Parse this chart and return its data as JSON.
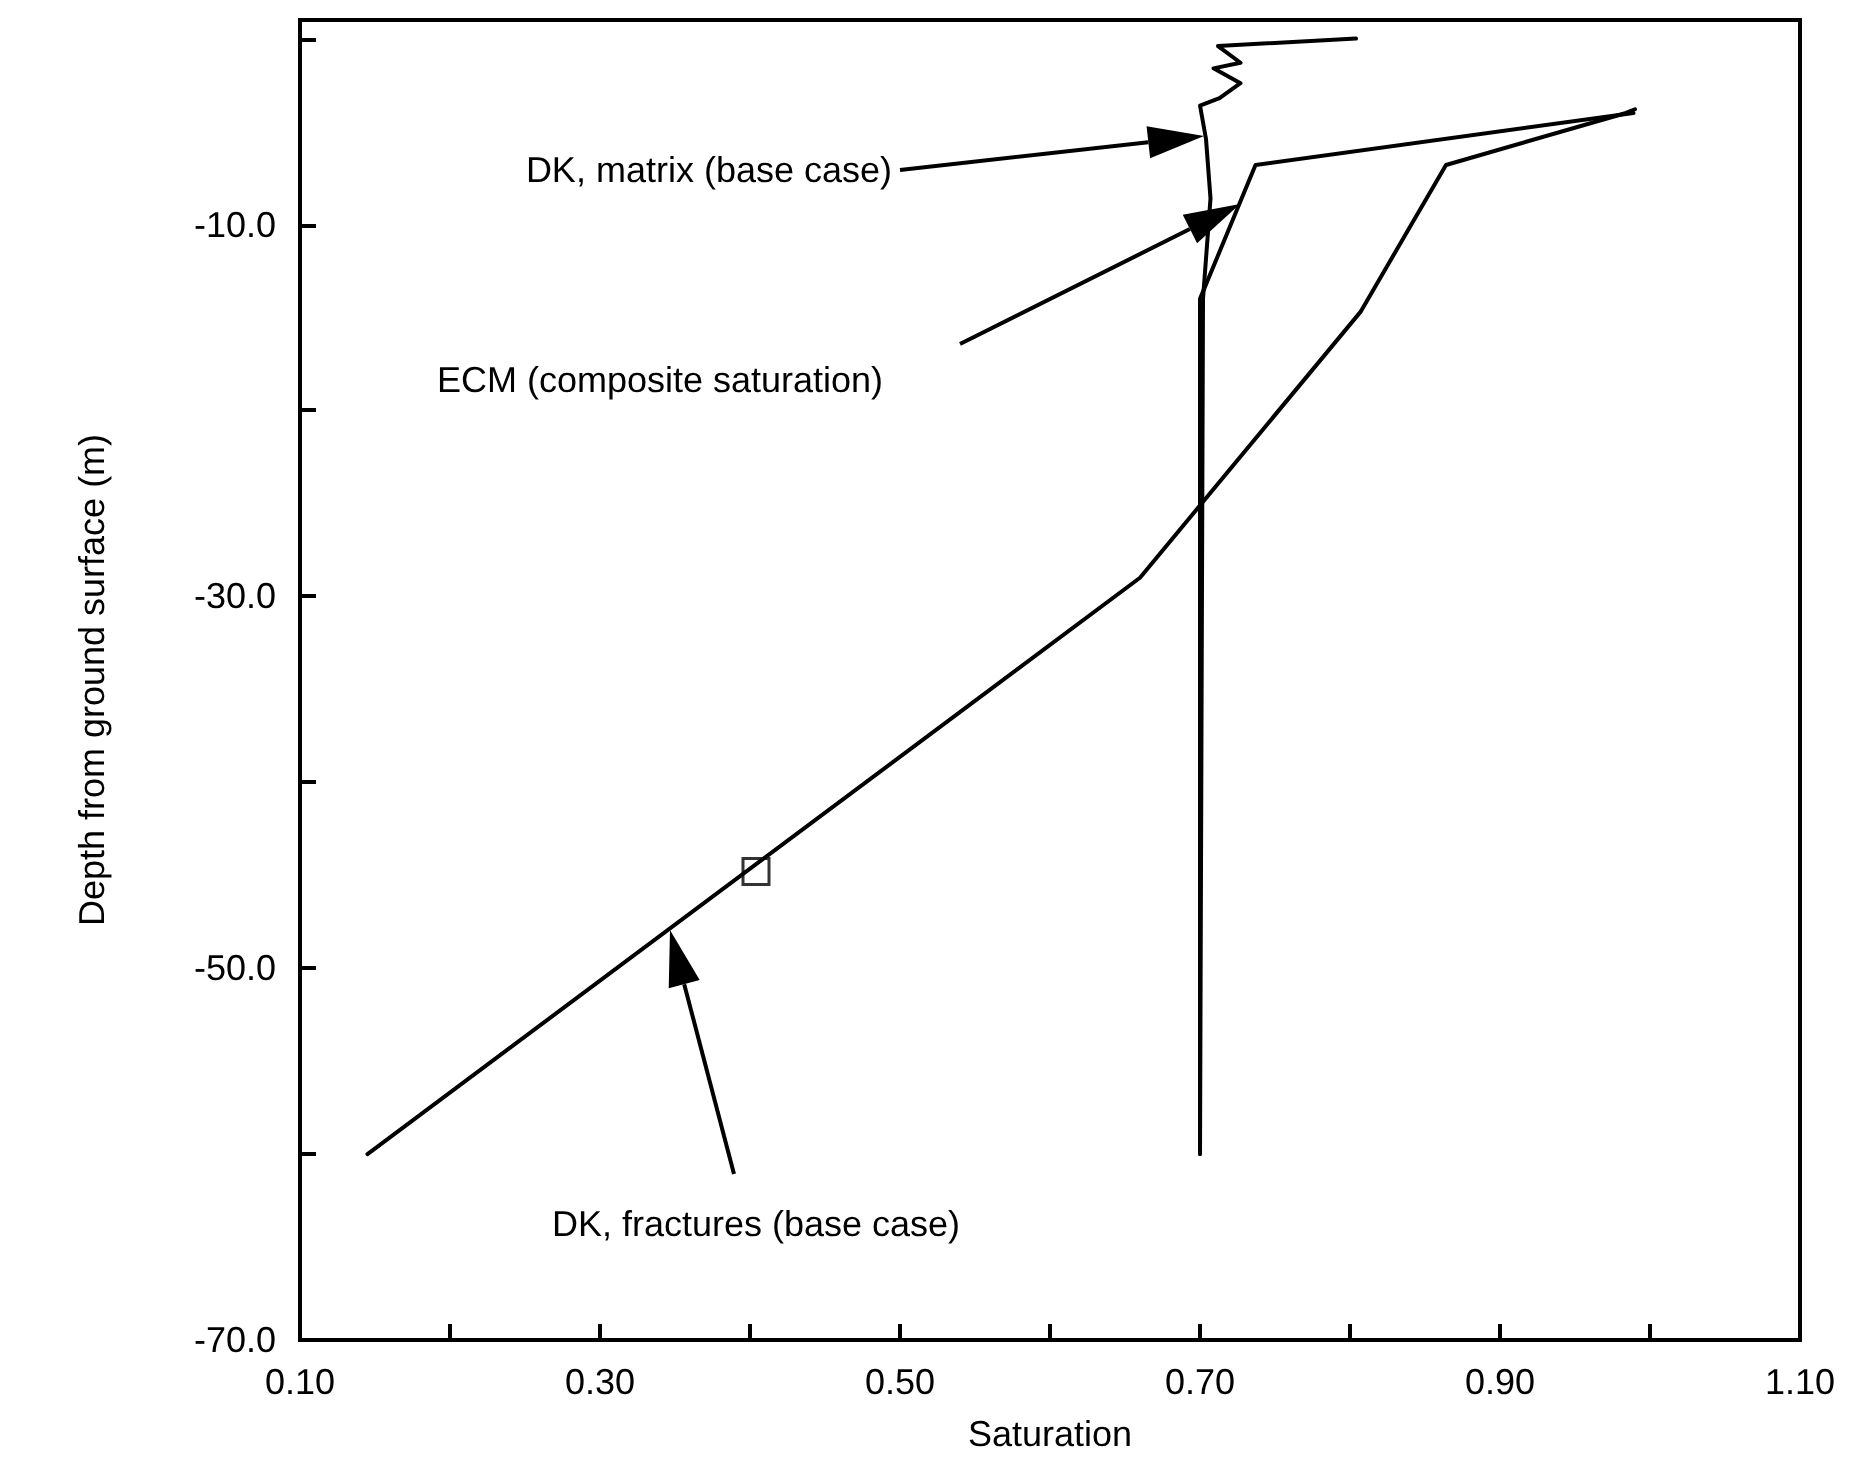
{
  "chart_data": {
    "type": "line",
    "xlabel": "Saturation",
    "ylabel": "Depth from ground surface (m)",
    "xlim": [
      0.1,
      1.1
    ],
    "ylim": [
      -70,
      1
    ],
    "xticks": [
      {
        "value": 0.1,
        "label": "0.10"
      },
      {
        "value": 0.2,
        "label": null
      },
      {
        "value": 0.3,
        "label": "0.30"
      },
      {
        "value": 0.4,
        "label": null
      },
      {
        "value": 0.5,
        "label": "0.50"
      },
      {
        "value": 0.6,
        "label": null
      },
      {
        "value": 0.7,
        "label": "0.70"
      },
      {
        "value": 0.8,
        "label": null
      },
      {
        "value": 0.9,
        "label": "0.90"
      },
      {
        "value": 1.0,
        "label": null
      },
      {
        "value": 1.1,
        "label": "1.10"
      }
    ],
    "yticks": [
      {
        "value": -70,
        "label": "-70.0"
      },
      {
        "value": -60,
        "label": null
      },
      {
        "value": -50,
        "label": "-50.0"
      },
      {
        "value": -40,
        "label": null
      },
      {
        "value": -30,
        "label": "-30.0"
      },
      {
        "value": -20,
        "label": null
      },
      {
        "value": -10,
        "label": "-10.0"
      },
      {
        "value": 0,
        "label": null
      }
    ],
    "grid": false,
    "marker": "none",
    "line_style": "solid",
    "series": [
      {
        "color": "#000000",
        "x": [
          0.145,
          0.66,
          0.807,
          0.864,
          0.984,
          0.99
        ],
        "values": [
          -60,
          -29,
          -14.7,
          -6.8,
          -4.0,
          -3.8
        ]
      },
      {
        "color": "#000000",
        "x": [
          0.7,
          0.7,
          0.737,
          0.989
        ],
        "values": [
          -60,
          -14,
          -6.8,
          -4.0
        ]
      },
      {
        "color": "#000000",
        "x": [
          0.804,
          0.712,
          0.727,
          0.709,
          0.727,
          0.713,
          0.7,
          0.704,
          0.707,
          0.702,
          0.7
        ],
        "values": [
          0,
          -0.4,
          -1.3,
          -1.6,
          -2.4,
          -3.2,
          -3.6,
          -5.4,
          -8.6,
          -14,
          -60
        ]
      },
      {
        "type": "scatter",
        "marker": "square",
        "color": "#000000",
        "x": [
          0.404
        ],
        "values": [
          -44.8
        ]
      }
    ],
    "annotations": [
      "DK, matrix (base case)",
      "ECM (composite saturation)",
      "DK, fractures (base case)"
    ]
  }
}
